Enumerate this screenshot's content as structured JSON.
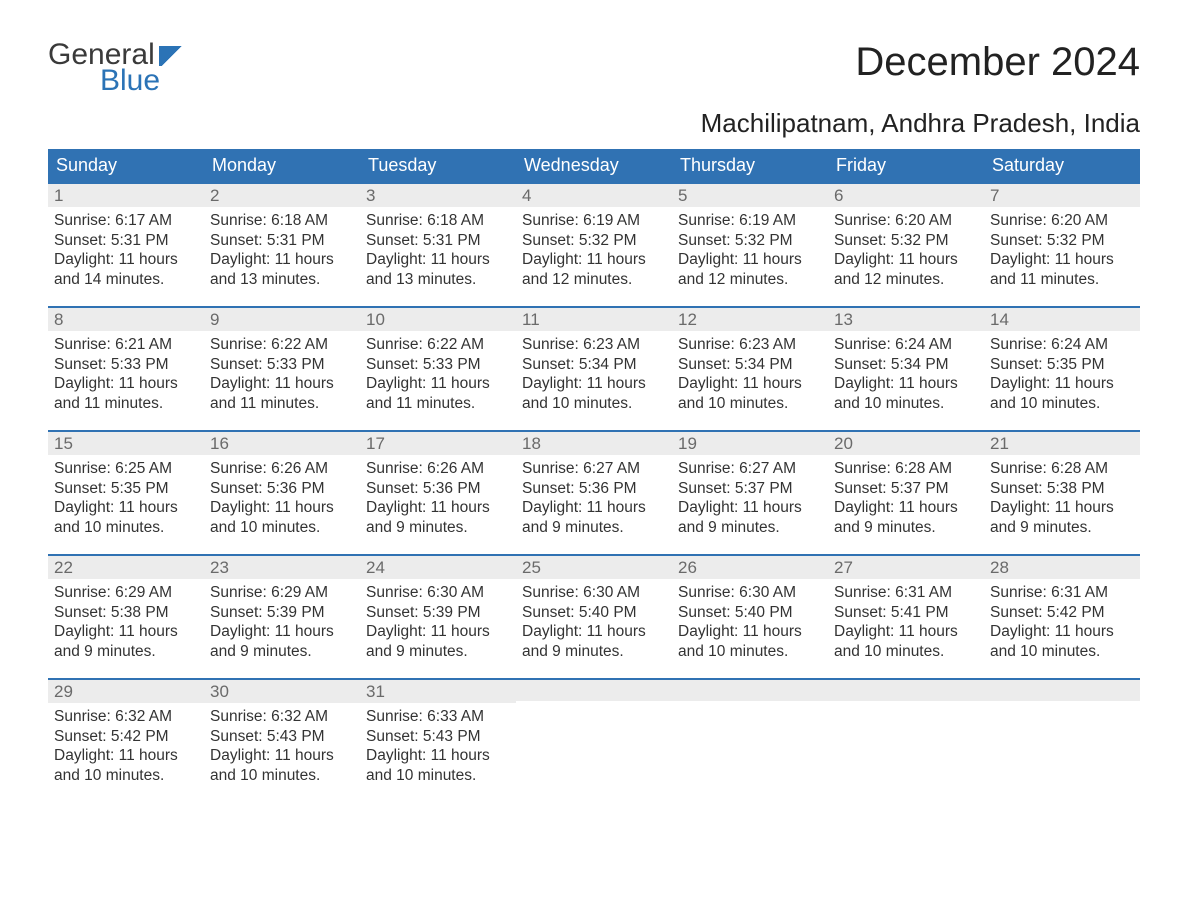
{
  "brand": {
    "word1": "General",
    "word2": "Blue"
  },
  "title": {
    "month": "December 2024",
    "location": "Machilipatnam, Andhra Pradesh, India"
  },
  "style": {
    "accent_color": "#3072b3",
    "daynum_bg": "#ececec",
    "text_color": "#333333",
    "daynum_color": "#6a6a6a",
    "body_bg": "#ffffff",
    "title_fontsize": 40,
    "loc_fontsize": 26,
    "dow_fontsize": 18,
    "cell_fontsize": 15.5,
    "columns": 7,
    "rows": 5
  },
  "dow": [
    "Sunday",
    "Monday",
    "Tuesday",
    "Wednesday",
    "Thursday",
    "Friday",
    "Saturday"
  ],
  "labels": {
    "sunrise": "Sunrise: ",
    "sunset": "Sunset: ",
    "daylight": "Daylight: "
  },
  "weeks": [
    [
      {
        "n": "1",
        "rise": "6:17 AM",
        "set": "5:31 PM",
        "dl": "11 hours and 14 minutes."
      },
      {
        "n": "2",
        "rise": "6:18 AM",
        "set": "5:31 PM",
        "dl": "11 hours and 13 minutes."
      },
      {
        "n": "3",
        "rise": "6:18 AM",
        "set": "5:31 PM",
        "dl": "11 hours and 13 minutes."
      },
      {
        "n": "4",
        "rise": "6:19 AM",
        "set": "5:32 PM",
        "dl": "11 hours and 12 minutes."
      },
      {
        "n": "5",
        "rise": "6:19 AM",
        "set": "5:32 PM",
        "dl": "11 hours and 12 minutes."
      },
      {
        "n": "6",
        "rise": "6:20 AM",
        "set": "5:32 PM",
        "dl": "11 hours and 12 minutes."
      },
      {
        "n": "7",
        "rise": "6:20 AM",
        "set": "5:32 PM",
        "dl": "11 hours and 11 minutes."
      }
    ],
    [
      {
        "n": "8",
        "rise": "6:21 AM",
        "set": "5:33 PM",
        "dl": "11 hours and 11 minutes."
      },
      {
        "n": "9",
        "rise": "6:22 AM",
        "set": "5:33 PM",
        "dl": "11 hours and 11 minutes."
      },
      {
        "n": "10",
        "rise": "6:22 AM",
        "set": "5:33 PM",
        "dl": "11 hours and 11 minutes."
      },
      {
        "n": "11",
        "rise": "6:23 AM",
        "set": "5:34 PM",
        "dl": "11 hours and 10 minutes."
      },
      {
        "n": "12",
        "rise": "6:23 AM",
        "set": "5:34 PM",
        "dl": "11 hours and 10 minutes."
      },
      {
        "n": "13",
        "rise": "6:24 AM",
        "set": "5:34 PM",
        "dl": "11 hours and 10 minutes."
      },
      {
        "n": "14",
        "rise": "6:24 AM",
        "set": "5:35 PM",
        "dl": "11 hours and 10 minutes."
      }
    ],
    [
      {
        "n": "15",
        "rise": "6:25 AM",
        "set": "5:35 PM",
        "dl": "11 hours and 10 minutes."
      },
      {
        "n": "16",
        "rise": "6:26 AM",
        "set": "5:36 PM",
        "dl": "11 hours and 10 minutes."
      },
      {
        "n": "17",
        "rise": "6:26 AM",
        "set": "5:36 PM",
        "dl": "11 hours and 9 minutes."
      },
      {
        "n": "18",
        "rise": "6:27 AM",
        "set": "5:36 PM",
        "dl": "11 hours and 9 minutes."
      },
      {
        "n": "19",
        "rise": "6:27 AM",
        "set": "5:37 PM",
        "dl": "11 hours and 9 minutes."
      },
      {
        "n": "20",
        "rise": "6:28 AM",
        "set": "5:37 PM",
        "dl": "11 hours and 9 minutes."
      },
      {
        "n": "21",
        "rise": "6:28 AM",
        "set": "5:38 PM",
        "dl": "11 hours and 9 minutes."
      }
    ],
    [
      {
        "n": "22",
        "rise": "6:29 AM",
        "set": "5:38 PM",
        "dl": "11 hours and 9 minutes."
      },
      {
        "n": "23",
        "rise": "6:29 AM",
        "set": "5:39 PM",
        "dl": "11 hours and 9 minutes."
      },
      {
        "n": "24",
        "rise": "6:30 AM",
        "set": "5:39 PM",
        "dl": "11 hours and 9 minutes."
      },
      {
        "n": "25",
        "rise": "6:30 AM",
        "set": "5:40 PM",
        "dl": "11 hours and 9 minutes."
      },
      {
        "n": "26",
        "rise": "6:30 AM",
        "set": "5:40 PM",
        "dl": "11 hours and 10 minutes."
      },
      {
        "n": "27",
        "rise": "6:31 AM",
        "set": "5:41 PM",
        "dl": "11 hours and 10 minutes."
      },
      {
        "n": "28",
        "rise": "6:31 AM",
        "set": "5:42 PM",
        "dl": "11 hours and 10 minutes."
      }
    ],
    [
      {
        "n": "29",
        "rise": "6:32 AM",
        "set": "5:42 PM",
        "dl": "11 hours and 10 minutes."
      },
      {
        "n": "30",
        "rise": "6:32 AM",
        "set": "5:43 PM",
        "dl": "11 hours and 10 minutes."
      },
      {
        "n": "31",
        "rise": "6:33 AM",
        "set": "5:43 PM",
        "dl": "11 hours and 10 minutes."
      },
      null,
      null,
      null,
      null
    ]
  ]
}
